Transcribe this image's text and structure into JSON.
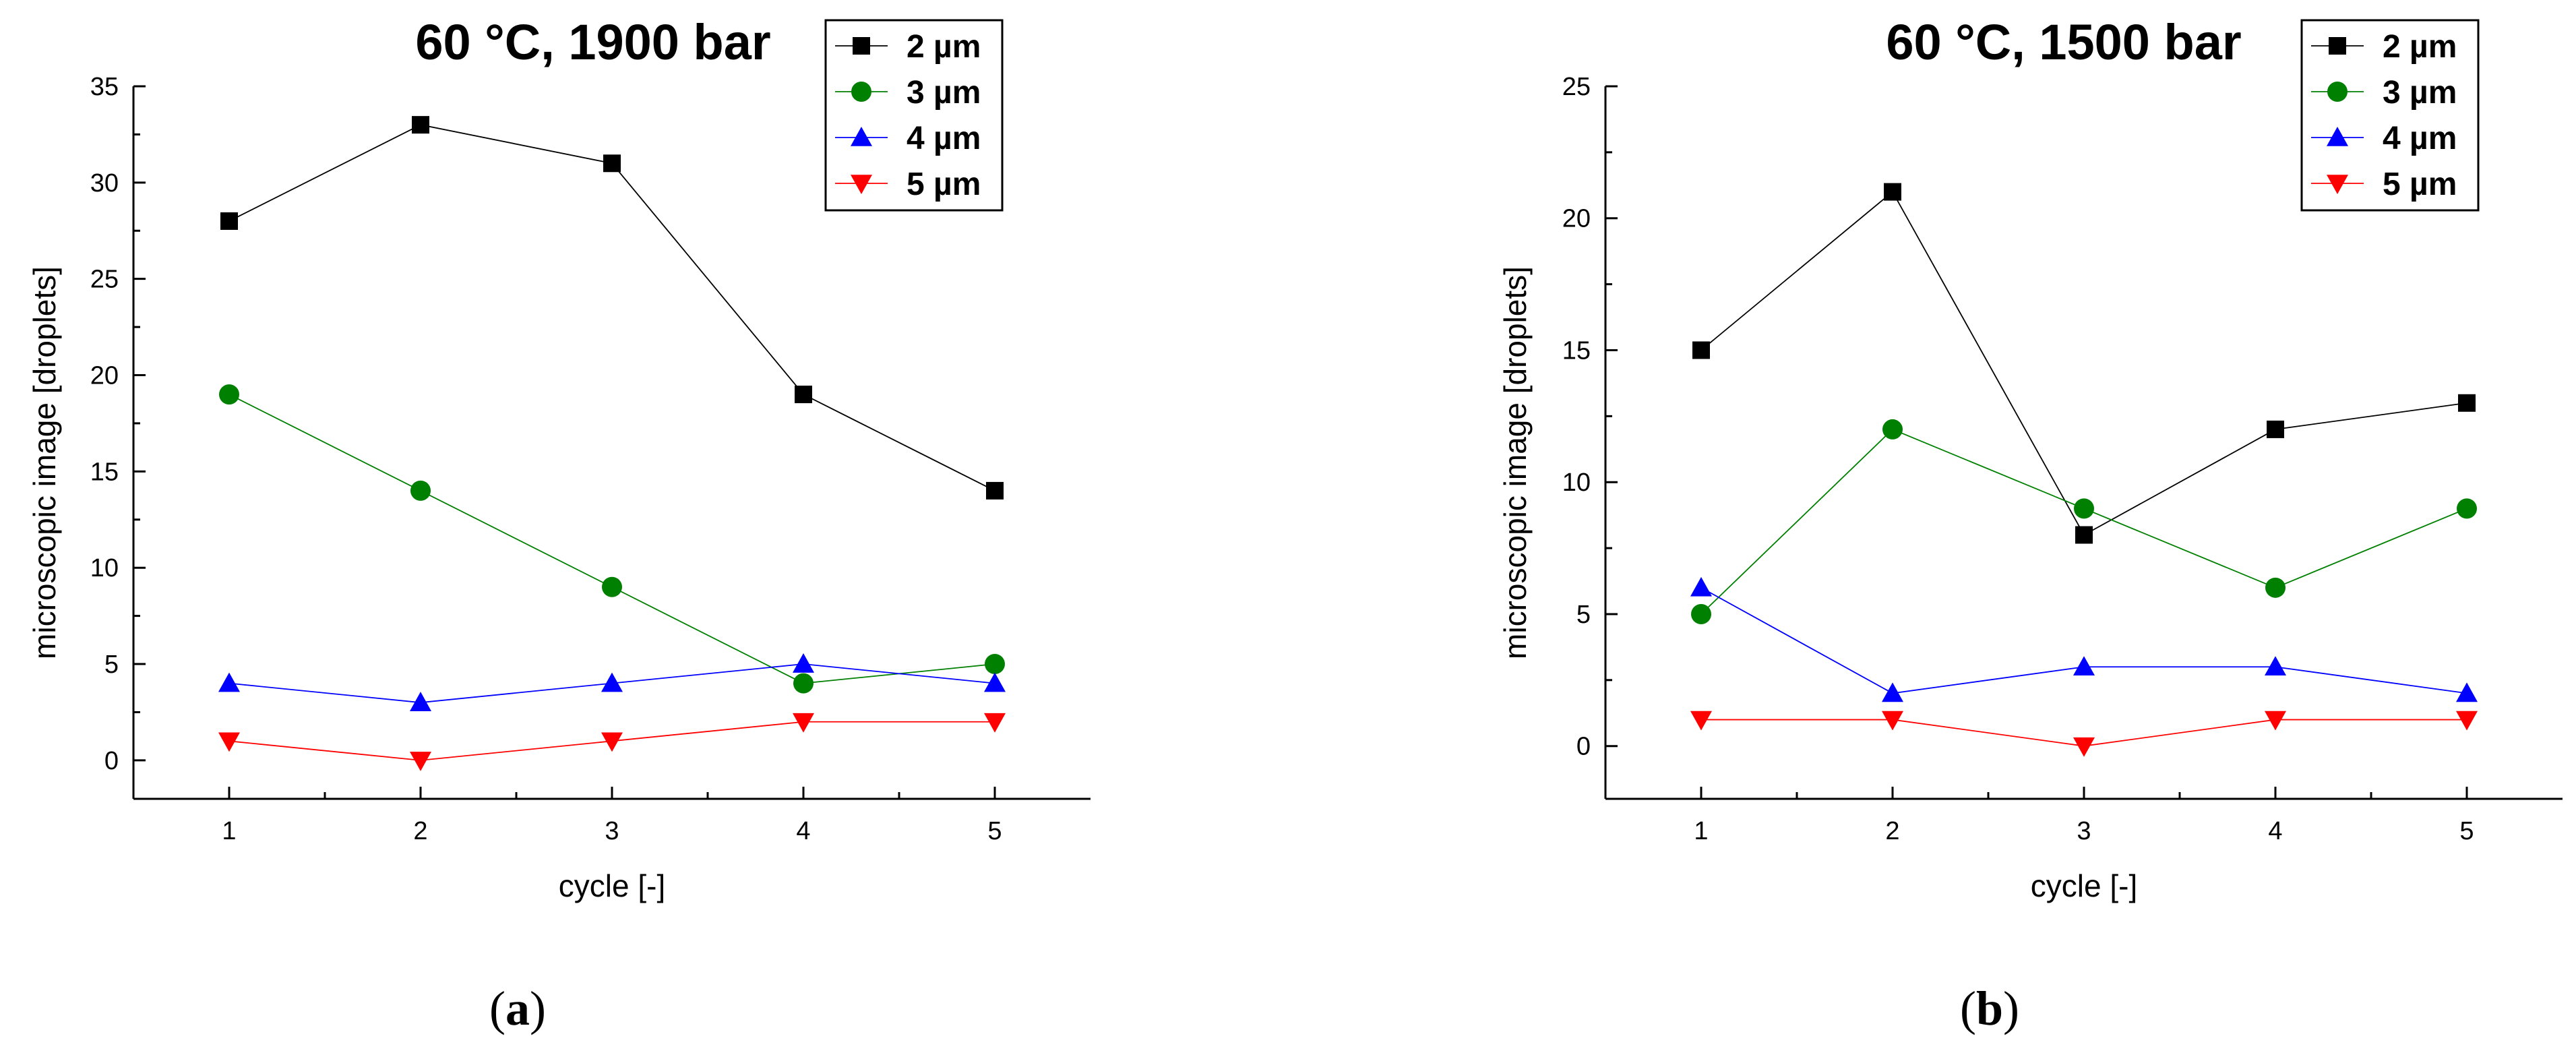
{
  "chart_data": [
    {
      "type": "line",
      "title": "60 °C, 1900 bar",
      "xlabel": "cycle [-]",
      "ylabel": "microscopic image [droplets]",
      "panel_label": "(a)",
      "x": [
        1,
        2,
        3,
        4,
        5
      ],
      "xlim": [
        0.5,
        5.5
      ],
      "ylim": [
        -2,
        35
      ],
      "yticks": [
        0,
        5,
        10,
        15,
        20,
        25,
        30,
        35
      ],
      "xticks": [
        1,
        2,
        3,
        4,
        5
      ],
      "legend_position": "top-right",
      "series": [
        {
          "name": "2 µm",
          "marker": "square",
          "color": "#000000",
          "values": [
            28,
            33,
            31,
            19,
            14
          ]
        },
        {
          "name": "3 µm",
          "marker": "circle",
          "color": "#008000",
          "values": [
            19,
            14,
            9,
            4,
            5
          ]
        },
        {
          "name": "4 µm",
          "marker": "triangle-up",
          "color": "#0000FF",
          "values": [
            4,
            3,
            4,
            5,
            4
          ]
        },
        {
          "name": "5 µm",
          "marker": "triangle-down",
          "color": "#FF0000",
          "values": [
            1,
            0,
            1,
            2,
            2
          ]
        }
      ]
    },
    {
      "type": "line",
      "title": "60 °C, 1500 bar",
      "xlabel": "cycle [-]",
      "ylabel": "microscopic image [droplets]",
      "panel_label": "(b)",
      "x": [
        1,
        2,
        3,
        4,
        5
      ],
      "xlim": [
        0.5,
        5.5
      ],
      "ylim": [
        -2,
        25
      ],
      "yticks": [
        0,
        5,
        10,
        15,
        20,
        25
      ],
      "xticks": [
        1,
        2,
        3,
        4,
        5
      ],
      "legend_position": "top-right",
      "series": [
        {
          "name": "2 µm",
          "marker": "square",
          "color": "#000000",
          "values": [
            15,
            21,
            8,
            12,
            13
          ]
        },
        {
          "name": "3 µm",
          "marker": "circle",
          "color": "#008000",
          "values": [
            5,
            12,
            9,
            6,
            9
          ]
        },
        {
          "name": "4 µm",
          "marker": "triangle-up",
          "color": "#0000FF",
          "values": [
            6,
            2,
            3,
            3,
            2
          ]
        },
        {
          "name": "5 µm",
          "marker": "triangle-down",
          "color": "#FF0000",
          "values": [
            1,
            1,
            0,
            1,
            1
          ]
        }
      ]
    }
  ]
}
